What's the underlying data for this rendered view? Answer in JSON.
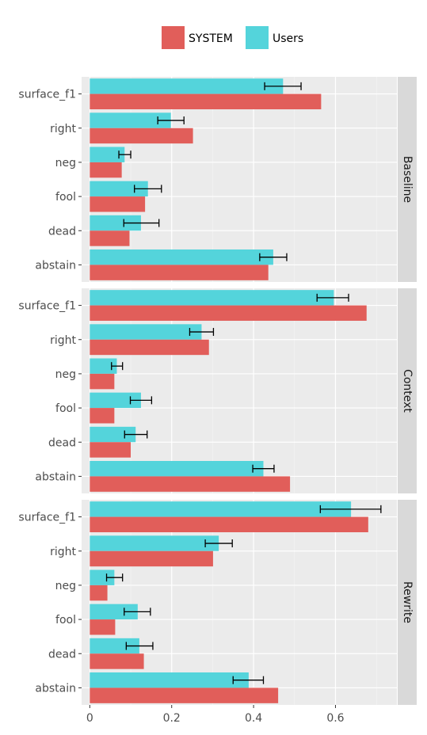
{
  "chart_data": {
    "type": "bar",
    "orientation": "horizontal",
    "categories": [
      "surface_f1",
      "right",
      "neg",
      "fool",
      "dead",
      "abstain"
    ],
    "facets": [
      "Baseline",
      "Context",
      "Rewrite"
    ],
    "xlim": [
      -0.02,
      0.75
    ],
    "x_ticks": [
      0,
      0.2,
      0.4,
      0.6
    ],
    "x_tick_labels": [
      "0",
      "0.2",
      "0.4",
      "0.6"
    ],
    "grid": true,
    "legend_position": "top",
    "legend": [
      "SYSTEM",
      "Users"
    ],
    "series": [
      {
        "name": "SYSTEM",
        "color": "#E15E5A",
        "values": {
          "Baseline": [
            0.565,
            0.252,
            0.078,
            0.135,
            0.097,
            0.436
          ],
          "Context": [
            0.676,
            0.291,
            0.06,
            0.06,
            0.1,
            0.489
          ],
          "Rewrite": [
            0.68,
            0.301,
            0.043,
            0.062,
            0.132,
            0.46
          ]
        }
      },
      {
        "name": "Users",
        "color": "#54D4DB",
        "values": {
          "Baseline": [
            0.472,
            0.198,
            0.085,
            0.142,
            0.125,
            0.448
          ],
          "Context": [
            0.596,
            0.273,
            0.066,
            0.125,
            0.112,
            0.424
          ],
          "Rewrite": [
            0.638,
            0.315,
            0.06,
            0.117,
            0.121,
            0.388
          ]
        },
        "error_low": {
          "Baseline": [
            0.427,
            0.166,
            0.071,
            0.109,
            0.083,
            0.415
          ],
          "Context": [
            0.555,
            0.244,
            0.053,
            0.099,
            0.085,
            0.398
          ],
          "Rewrite": [
            0.563,
            0.282,
            0.041,
            0.084,
            0.089,
            0.35
          ]
        },
        "error_high": {
          "Baseline": [
            0.516,
            0.23,
            0.1,
            0.175,
            0.169,
            0.481
          ],
          "Context": [
            0.632,
            0.302,
            0.08,
            0.151,
            0.14,
            0.45
          ],
          "Rewrite": [
            0.711,
            0.348,
            0.08,
            0.148,
            0.154,
            0.424
          ]
        }
      }
    ]
  }
}
